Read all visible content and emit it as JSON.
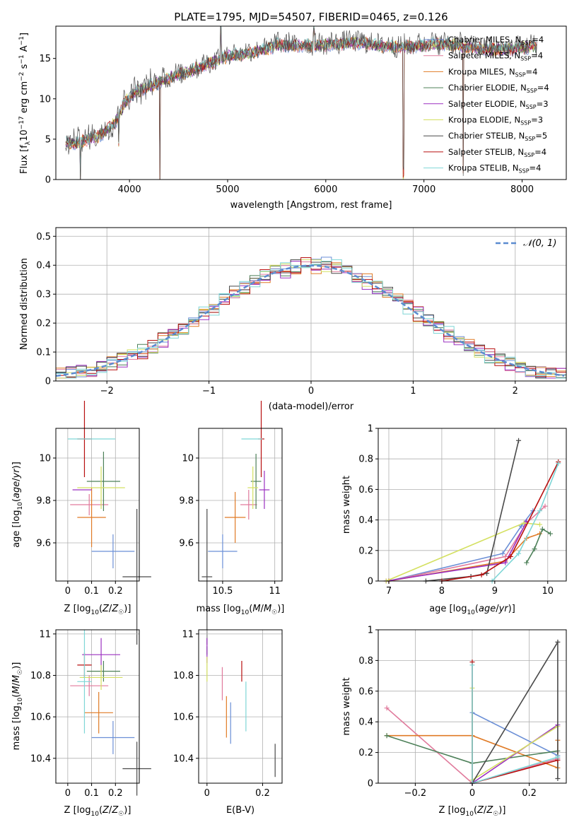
{
  "title": "PLATE=1795, MJD=54507, FIBERID=0465, z=0.126",
  "colors": {
    "Chabrier MILES": "#6b8fd6",
    "Salpeter MILES": "#e07a9c",
    "Kroupa MILES": "#e07b26",
    "Chabrier ELODIE": "#4d8059",
    "Salpeter ELODIE": "#9b30c0",
    "Kroupa ELODIE": "#d4e060",
    "Chabrier STELIB": "#4a4a4a",
    "Salpeter STELIB": "#b80f0f",
    "Kroupa STELIB": "#7fd6d6",
    "normal": "#5b8bd0"
  },
  "legend": [
    {
      "model": "Chabrier MILES",
      "n": "4"
    },
    {
      "model": "Salpeter MILES",
      "n": "4"
    },
    {
      "model": "Kroupa MILES",
      "n": "4"
    },
    {
      "model": "Chabrier ELODIE",
      "n": "4"
    },
    {
      "model": "Salpeter ELODIE",
      "n": "3"
    },
    {
      "model": "Kroupa ELODIE",
      "n": "3"
    },
    {
      "model": "Chabrier STELIB",
      "n": "5"
    },
    {
      "model": "Salpeter STELIB",
      "n": "4"
    },
    {
      "model": "Kroupa STELIB",
      "n": "4"
    }
  ],
  "chart_data": [
    {
      "id": "spectrum",
      "type": "line",
      "xlabel": "wavelength [Angstrom, rest frame]",
      "ylabel": "Flux [f_λ10^-17 erg cm^-2 s^-1 A^-1]",
      "xlim": [
        3250,
        8450
      ],
      "ylim": [
        0,
        19
      ],
      "xticks": [
        4000,
        5000,
        6000,
        7000,
        8000
      ],
      "yticks": [
        0,
        5,
        10,
        15
      ],
      "continuum": [
        [
          3350,
          4.6
        ],
        [
          3450,
          4.4
        ],
        [
          3550,
          4.9
        ],
        [
          3700,
          5.5
        ],
        [
          3850,
          7.0
        ],
        [
          3950,
          9.5
        ],
        [
          4050,
          10.8
        ],
        [
          4200,
          11.5
        ],
        [
          4400,
          12.6
        ],
        [
          4600,
          13.3
        ],
        [
          4800,
          14.3
        ],
        [
          5000,
          15.3
        ],
        [
          5200,
          15.6
        ],
        [
          5400,
          16.2
        ],
        [
          5500,
          16.7
        ],
        [
          5700,
          16.6
        ],
        [
          5900,
          16.6
        ],
        [
          6100,
          16.8
        ],
        [
          6300,
          17.0
        ],
        [
          6500,
          16.7
        ],
        [
          6700,
          16.4
        ],
        [
          6900,
          16.5
        ],
        [
          7100,
          16.8
        ],
        [
          7300,
          16.7
        ],
        [
          7500,
          16.3
        ],
        [
          7700,
          16.1
        ],
        [
          7900,
          16.2
        ],
        [
          8100,
          16.5
        ]
      ],
      "features": [
        [
          3500,
          -4.5
        ],
        [
          3890,
          -3.5
        ],
        [
          4310,
          -13.5
        ],
        [
          4930,
          3.5
        ],
        [
          5880,
          2.5
        ],
        [
          6790,
          -16.0
        ],
        [
          7400,
          -15.5
        ]
      ]
    },
    {
      "id": "residuals",
      "type": "bar",
      "xlabel": "(data-model)/error",
      "ylabel": "Normed distribution",
      "xlim": [
        -2.5,
        2.5
      ],
      "ylim": [
        0,
        0.53
      ],
      "xticks": [
        -2,
        -1,
        0,
        1,
        2
      ],
      "yticks": [
        0.0,
        0.1,
        0.2,
        0.3,
        0.4,
        0.5
      ],
      "legend": "𝒩(0, 1)",
      "bin_width": 0.1
    },
    {
      "id": "age-z",
      "type": "scatter",
      "xlabel": "Z [log10(Z/Z☉)]",
      "ylabel": "age  [log10(age/yr)]",
      "xlim": [
        -0.05,
        0.3
      ],
      "ylim": [
        9.42,
        10.14
      ],
      "xticks": [
        0.0,
        0.1,
        0.2
      ],
      "yticks": [
        9.6,
        9.8,
        10.0
      ],
      "points": [
        {
          "model": "Chabrier MILES",
          "x": 0.19,
          "y": 9.56,
          "xerr": 0.09,
          "yerr": 0.08
        },
        {
          "model": "Salpeter MILES",
          "x": 0.09,
          "y": 9.78,
          "xerr": 0.08,
          "yerr": 0.05
        },
        {
          "model": "Kroupa MILES",
          "x": 0.1,
          "y": 9.72,
          "xerr": 0.06,
          "yerr": 0.14
        },
        {
          "model": "Chabrier ELODIE",
          "x": 0.15,
          "y": 9.89,
          "xerr": 0.07,
          "yerr": 0.14
        },
        {
          "model": "Salpeter ELODIE",
          "x": 0.06,
          "y": 9.85,
          "xerr": 0.04,
          "yerr": 0.0
        },
        {
          "model": "Kroupa ELODIE",
          "x": 0.14,
          "y": 9.86,
          "xerr": 0.1,
          "yerr": 0.1
        },
        {
          "model": "Chabrier STELIB",
          "x": 0.29,
          "y": 9.44,
          "xerr": 0.06,
          "yerr": 0.32
        },
        {
          "model": "Salpeter STELIB",
          "x": 0.07,
          "y": 10.09,
          "xerr": 0.03,
          "yerr": 0.18
        },
        {
          "model": "Kroupa STELIB",
          "x": 0.1,
          "y": 10.09,
          "xerr": 0.1,
          "yerr": 0.0
        }
      ]
    },
    {
      "id": "age-mass",
      "type": "scatter",
      "xlabel": "mass [log10(M/M☉)]",
      "ylabel": "",
      "xlim": [
        10.27,
        11.07
      ],
      "ylim": [
        9.42,
        10.14
      ],
      "xticks": [
        10.5,
        11.0
      ],
      "yticks": [
        9.6,
        9.8,
        10.0
      ],
      "points": [
        {
          "model": "Chabrier MILES",
          "x": 10.5,
          "y": 9.56,
          "xerr": 0.14,
          "yerr": 0.08
        },
        {
          "model": "Salpeter MILES",
          "x": 10.75,
          "y": 9.78,
          "xerr": 0.08,
          "yerr": 0.07
        },
        {
          "model": "Kroupa MILES",
          "x": 10.62,
          "y": 9.72,
          "xerr": 0.1,
          "yerr": 0.12
        },
        {
          "model": "Chabrier ELODIE",
          "x": 10.82,
          "y": 9.89,
          "xerr": 0.05,
          "yerr": 0.13
        },
        {
          "model": "Salpeter ELODIE",
          "x": 10.9,
          "y": 9.85,
          "xerr": 0.05,
          "yerr": 0.09
        },
        {
          "model": "Kroupa ELODIE",
          "x": 10.79,
          "y": 9.86,
          "xerr": 0.05,
          "yerr": 0.1
        },
        {
          "model": "Chabrier STELIB",
          "x": 10.35,
          "y": 9.44,
          "xerr": 0.05,
          "yerr": 0.32
        },
        {
          "model": "Salpeter STELIB",
          "x": 10.87,
          "y": 10.09,
          "xerr": 0.03,
          "yerr": 0.18
        },
        {
          "model": "Kroupa STELIB",
          "x": 10.78,
          "y": 10.09,
          "xerr": 0.1,
          "yerr": 0.0
        }
      ]
    },
    {
      "id": "weight-age",
      "type": "line",
      "xlabel": "age  [log10(age/yr)]",
      "ylabel": "mass weight",
      "xlim": [
        6.8,
        10.35
      ],
      "ylim": [
        0,
        1
      ],
      "xticks": [
        7,
        8,
        9,
        10
      ],
      "yticks": [
        0.0,
        0.2,
        0.4,
        0.6,
        0.8,
        1.0
      ],
      "series": [
        {
          "model": "Chabrier MILES",
          "points": [
            [
              7.0,
              0.0
            ],
            [
              9.15,
              0.18
            ],
            [
              9.5,
              0.36
            ],
            [
              9.72,
              0.46
            ]
          ]
        },
        {
          "model": "Salpeter MILES",
          "points": [
            [
              7.0,
              0.0
            ],
            [
              9.2,
              0.16
            ],
            [
              9.6,
              0.38
            ],
            [
              9.95,
              0.49
            ]
          ]
        },
        {
          "model": "Kroupa MILES",
          "points": [
            [
              7.0,
              0.0
            ],
            [
              9.2,
              0.13
            ],
            [
              9.6,
              0.28
            ],
            [
              9.85,
              0.31
            ]
          ]
        },
        {
          "model": "Chabrier ELODIE",
          "points": [
            [
              9.6,
              0.12
            ],
            [
              9.75,
              0.21
            ],
            [
              9.9,
              0.34
            ],
            [
              10.05,
              0.31
            ]
          ]
        },
        {
          "model": "Salpeter ELODIE",
          "points": [
            [
              6.95,
              0.0
            ],
            [
              9.2,
              0.12
            ],
            [
              9.6,
              0.39
            ]
          ]
        },
        {
          "model": "Kroupa ELODIE",
          "points": [
            [
              6.95,
              0.0
            ],
            [
              9.55,
              0.38
            ],
            [
              9.85,
              0.37
            ]
          ]
        },
        {
          "model": "Chabrier STELIB",
          "points": [
            [
              7.7,
              0.0
            ],
            [
              8.55,
              0.03
            ],
            [
              8.85,
              0.05
            ],
            [
              9.45,
              0.92
            ]
          ]
        },
        {
          "model": "Salpeter STELIB",
          "points": [
            [
              8.0,
              0.0
            ],
            [
              8.75,
              0.04
            ],
            [
              9.3,
              0.16
            ],
            [
              10.2,
              0.78
            ]
          ]
        },
        {
          "model": "Kroupa STELIB",
          "points": [
            [
              8.95,
              0.0
            ],
            [
              9.45,
              0.18
            ],
            [
              9.85,
              0.46
            ],
            [
              10.2,
              0.77
            ]
          ]
        }
      ]
    },
    {
      "id": "mass-z",
      "type": "scatter",
      "xlabel": "Z [log10(Z/Z☉)]",
      "ylabel": "mass [log10(M/M☉)]",
      "xlim": [
        -0.05,
        0.3
      ],
      "ylim": [
        10.28,
        11.02
      ],
      "xticks": [
        0.0,
        0.1,
        0.2
      ],
      "yticks": [
        10.4,
        10.6,
        10.8,
        11.0
      ],
      "points": [
        {
          "model": "Chabrier MILES",
          "x": 0.19,
          "y": 10.5,
          "xerr": 0.09,
          "yerr": 0.08
        },
        {
          "model": "Salpeter MILES",
          "x": 0.09,
          "y": 10.75,
          "xerr": 0.08,
          "yerr": 0.05
        },
        {
          "model": "Kroupa MILES",
          "x": 0.13,
          "y": 10.62,
          "xerr": 0.06,
          "yerr": 0.1
        },
        {
          "model": "Chabrier ELODIE",
          "x": 0.15,
          "y": 10.82,
          "xerr": 0.07,
          "yerr": 0.05
        },
        {
          "model": "Salpeter ELODIE",
          "x": 0.14,
          "y": 10.9,
          "xerr": 0.08,
          "yerr": 0.08
        },
        {
          "model": "Kroupa ELODIE",
          "x": 0.14,
          "y": 10.79,
          "xerr": 0.09,
          "yerr": 0.06
        },
        {
          "model": "Chabrier STELIB",
          "x": 0.29,
          "y": 10.35,
          "xerr": 0.06,
          "yerr": 0.13
        },
        {
          "model": "Salpeter STELIB",
          "x": 0.07,
          "y": 10.85,
          "xerr": 0.03,
          "yerr": 0.06
        },
        {
          "model": "Kroupa STELIB",
          "x": 0.07,
          "y": 10.77,
          "xerr": 0.03,
          "yerr": 0.25
        }
      ]
    },
    {
      "id": "mass-ebv",
      "type": "scatter",
      "xlabel": "E(B-V)",
      "ylabel": "",
      "xlim": [
        -0.03,
        0.27
      ],
      "ylim": [
        10.28,
        11.02
      ],
      "xticks": [
        0.0,
        0.2
      ],
      "yticks": [
        10.4,
        10.6,
        10.8,
        11.0
      ],
      "points": [
        {
          "model": "Chabrier MILES",
          "x": 0.085,
          "y": 10.57,
          "xerr": 0.0,
          "yerr": 0.1
        },
        {
          "model": "Salpeter MILES",
          "x": 0.055,
          "y": 10.76,
          "xerr": 0.0,
          "yerr": 0.08
        },
        {
          "model": "Kroupa MILES",
          "x": 0.07,
          "y": 10.6,
          "xerr": 0.0,
          "yerr": 0.1
        },
        {
          "model": "Chabrier ELODIE",
          "x": 0.0,
          "y": 10.92,
          "xerr": 0.0,
          "yerr": 0.02
        },
        {
          "model": "Salpeter ELODIE",
          "x": 0.0,
          "y": 10.92,
          "xerr": 0.0,
          "yerr": 0.06
        },
        {
          "model": "Kroupa ELODIE",
          "x": 0.0,
          "y": 10.83,
          "xerr": 0.0,
          "yerr": 0.06
        },
        {
          "model": "Chabrier STELIB",
          "x": 0.245,
          "y": 10.39,
          "xerr": 0.0,
          "yerr": 0.08
        },
        {
          "model": "Salpeter STELIB",
          "x": 0.125,
          "y": 10.82,
          "xerr": 0.0,
          "yerr": 0.05
        },
        {
          "model": "Kroupa STELIB",
          "x": 0.14,
          "y": 10.65,
          "xerr": 0.0,
          "yerr": 0.12
        }
      ]
    },
    {
      "id": "weight-z",
      "type": "line",
      "xlabel": "Z [log10(Z/Z☉)]",
      "ylabel": "mass weight",
      "xlim": [
        -0.33,
        0.33
      ],
      "ylim": [
        0,
        1
      ],
      "xticks": [
        -0.2,
        0.0,
        0.2
      ],
      "yticks": [
        0.0,
        0.2,
        0.4,
        0.6,
        0.8,
        1.0
      ],
      "series": [
        {
          "model": "Chabrier MILES",
          "points": [
            [
              0.0,
              0.0
            ],
            [
              0.0,
              0.46
            ],
            [
              0.3,
              0.18
            ],
            [
              0.3,
              0.15
            ]
          ]
        },
        {
          "model": "Salpeter MILES",
          "points": [
            [
              -0.3,
              0.49
            ],
            [
              0.0,
              0.0
            ],
            [
              0.3,
              0.16
            ]
          ]
        },
        {
          "model": "Kroupa MILES",
          "points": [
            [
              -0.3,
              0.31
            ],
            [
              0.0,
              0.31
            ],
            [
              0.3,
              0.1
            ],
            [
              0.3,
              0.28
            ]
          ]
        },
        {
          "model": "Chabrier ELODIE",
          "points": [
            [
              -0.3,
              0.31
            ],
            [
              0.0,
              0.13
            ],
            [
              0.3,
              0.21
            ]
          ]
        },
        {
          "model": "Salpeter ELODIE",
          "points": [
            [
              0.0,
              0.0
            ],
            [
              0.3,
              0.38
            ]
          ]
        },
        {
          "model": "Kroupa ELODIE",
          "points": [
            [
              0.0,
              0.62
            ],
            [
              0.0,
              0.02
            ],
            [
              0.3,
              0.37
            ]
          ]
        },
        {
          "model": "Chabrier STELIB",
          "points": [
            [
              0.0,
              0.0
            ],
            [
              0.3,
              0.92
            ],
            [
              0.3,
              0.03
            ]
          ]
        },
        {
          "model": "Salpeter STELIB",
          "points": [
            [
              0.0,
              0.79
            ],
            [
              0.0,
              0.0
            ],
            [
              0.3,
              0.15
            ]
          ]
        },
        {
          "model": "Kroupa STELIB",
          "points": [
            [
              0.0,
              0.77
            ],
            [
              0.0,
              0.0
            ],
            [
              0.3,
              0.17
            ]
          ]
        }
      ]
    }
  ]
}
